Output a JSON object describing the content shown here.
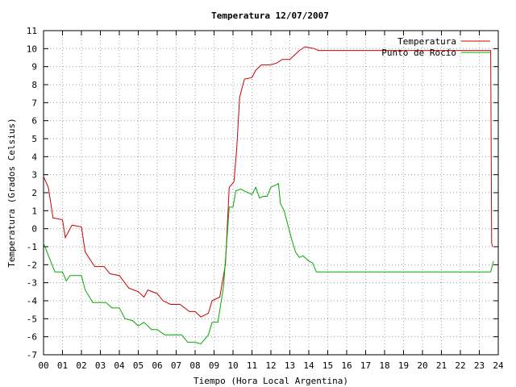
{
  "chart_data": {
    "type": "line",
    "title": "Temperatura 12/07/2007",
    "xlabel": "Tiempo (Hora Local Argentina)",
    "ylabel": "Temperatura (Grados Celsius)",
    "xlim": [
      0,
      24
    ],
    "ylim": [
      -7,
      11
    ],
    "grid": true,
    "legend_position": "top-right",
    "x_tick_labels": [
      "00",
      "01",
      "02",
      "03",
      "04",
      "05",
      "06",
      "07",
      "08",
      "09",
      "10",
      "11",
      "12",
      "13",
      "14",
      "15",
      "16",
      "17",
      "18",
      "19",
      "20",
      "21",
      "22",
      "23",
      "24"
    ],
    "y_tick_labels": [
      "-7",
      "-6",
      "-5",
      "-4",
      "-3",
      "-2",
      "-1",
      "0",
      "1",
      "2",
      "3",
      "4",
      "5",
      "6",
      "7",
      "8",
      "9",
      "10",
      "11"
    ],
    "series": [
      {
        "name": "Temperatura",
        "color": "#cc0000",
        "points": [
          [
            0.0,
            2.9
          ],
          [
            0.25,
            2.3
          ],
          [
            0.5,
            0.6
          ],
          [
            1.0,
            0.5
          ],
          [
            1.15,
            -0.5
          ],
          [
            1.5,
            0.2
          ],
          [
            2.0,
            0.1
          ],
          [
            2.2,
            -1.3
          ],
          [
            2.7,
            -2.1
          ],
          [
            3.2,
            -2.1
          ],
          [
            3.5,
            -2.5
          ],
          [
            4.0,
            -2.6
          ],
          [
            4.5,
            -3.3
          ],
          [
            5.0,
            -3.5
          ],
          [
            5.3,
            -3.8
          ],
          [
            5.5,
            -3.4
          ],
          [
            6.0,
            -3.6
          ],
          [
            6.3,
            -4.0
          ],
          [
            6.7,
            -4.2
          ],
          [
            7.2,
            -4.2
          ],
          [
            7.7,
            -4.6
          ],
          [
            8.0,
            -4.6
          ],
          [
            8.3,
            -4.9
          ],
          [
            8.7,
            -4.7
          ],
          [
            8.9,
            -4.0
          ],
          [
            9.3,
            -3.8
          ],
          [
            9.6,
            -2.0
          ],
          [
            9.8,
            2.3
          ],
          [
            10.05,
            2.6
          ],
          [
            10.2,
            4.5
          ],
          [
            10.35,
            7.3
          ],
          [
            10.6,
            8.3
          ],
          [
            11.0,
            8.4
          ],
          [
            11.2,
            8.8
          ],
          [
            11.5,
            9.1
          ],
          [
            12.0,
            9.1
          ],
          [
            12.3,
            9.2
          ],
          [
            12.6,
            9.4
          ],
          [
            13.0,
            9.4
          ],
          [
            13.5,
            9.9
          ],
          [
            13.8,
            10.1
          ],
          [
            14.3,
            10.0
          ],
          [
            14.5,
            9.9
          ],
          [
            15.0,
            9.9
          ],
          [
            16.0,
            9.9
          ],
          [
            18.0,
            9.9
          ],
          [
            20.0,
            9.9
          ],
          [
            22.0,
            9.9
          ],
          [
            23.0,
            9.9
          ],
          [
            23.6,
            9.9
          ],
          [
            23.65,
            -0.8
          ],
          [
            23.7,
            -1.0
          ]
        ]
      },
      {
        "name": "Punto de Rocío",
        "color": "#00aa00",
        "points": [
          [
            0.0,
            -0.8
          ],
          [
            0.3,
            -1.6
          ],
          [
            0.6,
            -2.4
          ],
          [
            1.0,
            -2.4
          ],
          [
            1.2,
            -2.9
          ],
          [
            1.4,
            -2.6
          ],
          [
            1.6,
            -2.6
          ],
          [
            2.0,
            -2.6
          ],
          [
            2.2,
            -3.4
          ],
          [
            2.6,
            -4.1
          ],
          [
            3.0,
            -4.1
          ],
          [
            3.3,
            -4.1
          ],
          [
            3.6,
            -4.4
          ],
          [
            4.0,
            -4.4
          ],
          [
            4.3,
            -5.0
          ],
          [
            4.7,
            -5.1
          ],
          [
            5.0,
            -5.4
          ],
          [
            5.3,
            -5.2
          ],
          [
            5.7,
            -5.6
          ],
          [
            6.0,
            -5.6
          ],
          [
            6.4,
            -5.9
          ],
          [
            7.0,
            -5.9
          ],
          [
            7.3,
            -5.9
          ],
          [
            7.6,
            -6.3
          ],
          [
            8.0,
            -6.3
          ],
          [
            8.3,
            -6.4
          ],
          [
            8.7,
            -5.9
          ],
          [
            8.9,
            -5.2
          ],
          [
            9.2,
            -5.2
          ],
          [
            9.5,
            -3.2
          ],
          [
            9.8,
            1.2
          ],
          [
            10.0,
            1.2
          ],
          [
            10.15,
            2.1
          ],
          [
            10.4,
            2.2
          ],
          [
            10.6,
            2.1
          ],
          [
            11.0,
            1.9
          ],
          [
            11.2,
            2.3
          ],
          [
            11.4,
            1.7
          ],
          [
            11.6,
            1.8
          ],
          [
            11.8,
            1.8
          ],
          [
            12.0,
            2.3
          ],
          [
            12.2,
            2.4
          ],
          [
            12.4,
            2.5
          ],
          [
            12.5,
            1.4
          ],
          [
            12.7,
            1.0
          ],
          [
            12.9,
            0.2
          ],
          [
            13.1,
            -0.6
          ],
          [
            13.3,
            -1.3
          ],
          [
            13.5,
            -1.6
          ],
          [
            13.7,
            -1.5
          ],
          [
            14.0,
            -1.8
          ],
          [
            14.2,
            -1.9
          ],
          [
            14.4,
            -2.4
          ],
          [
            15.0,
            -2.4
          ],
          [
            16.0,
            -2.4
          ],
          [
            18.0,
            -2.4
          ],
          [
            20.0,
            -2.4
          ],
          [
            22.0,
            -2.4
          ],
          [
            23.0,
            -2.4
          ],
          [
            23.6,
            -2.4
          ],
          [
            23.75,
            -1.8
          ]
        ]
      }
    ]
  }
}
